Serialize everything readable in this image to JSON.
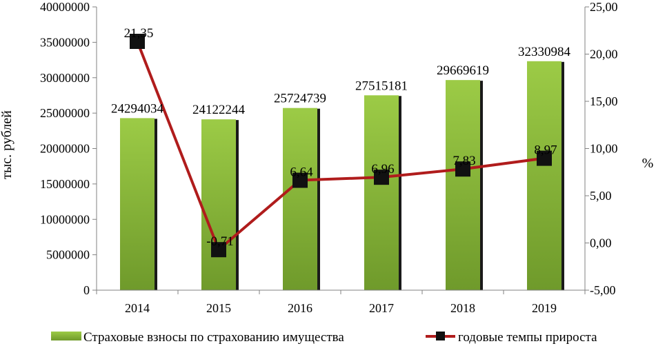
{
  "chart_data": {
    "type": "bar",
    "categories": [
      "2014",
      "2015",
      "2016",
      "2017",
      "2018",
      "2019"
    ],
    "series": [
      {
        "name": "Страховые взносы по страхованию имущества",
        "type": "bar",
        "axis": "left",
        "values": [
          24294034,
          24122244,
          25724739,
          27515181,
          29669619,
          32330984
        ],
        "labels": [
          "24294034",
          "24122244",
          "25724739",
          "27515181",
          "29669619",
          "32330984"
        ],
        "color": "#8ab83a"
      },
      {
        "name": "годовые темпы прироста",
        "type": "line",
        "axis": "right",
        "values": [
          21.35,
          -0.71,
          6.64,
          6.96,
          7.83,
          8.97
        ],
        "labels": [
          "21,35",
          "-0,71",
          "6,64",
          "6,96",
          "7,83",
          "8,97"
        ],
        "color": "#b01c1c",
        "marker_color": "#111111"
      }
    ],
    "ylabel": "тыс. рублей",
    "ylabel_right": "%",
    "ylim": [
      0,
      40000000
    ],
    "ylim_right": [
      -5,
      25
    ],
    "yticks": [
      "0",
      "5000000",
      "10000000",
      "15000000",
      "20000000",
      "25000000",
      "30000000",
      "35000000",
      "40000000"
    ],
    "yticks_right": [
      "-5,00",
      "0,00",
      "5,00",
      "10,00",
      "15,00",
      "20,00",
      "25,00"
    ],
    "grid": false,
    "legend": "bottom"
  }
}
